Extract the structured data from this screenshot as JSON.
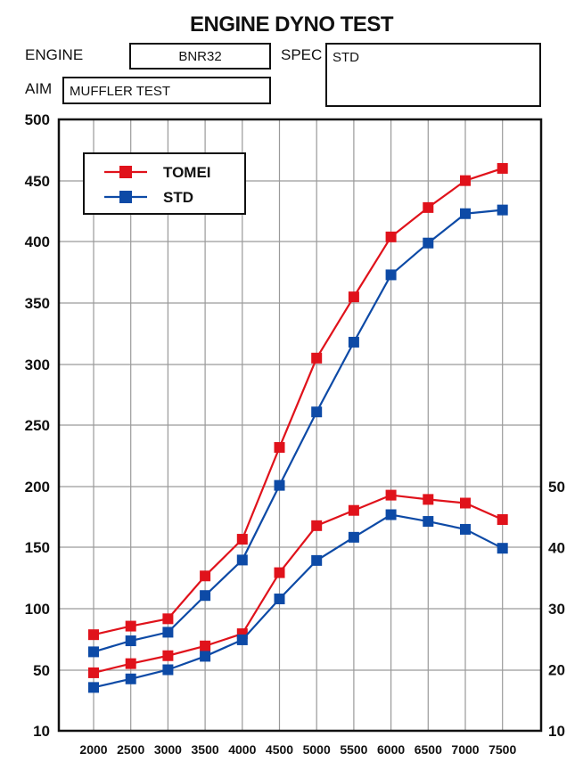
{
  "header": {
    "title": "ENGINE DYNO TEST",
    "engine_label": "ENGINE",
    "engine_value": "BNR32",
    "spec_label": "SPEC",
    "spec_value": "STD",
    "aim_label": "AIM",
    "aim_value": "MUFFLER TEST"
  },
  "chart_data": {
    "type": "line",
    "title": "ENGINE DYNO TEST",
    "xlabel": "",
    "ylabel": "",
    "x": [
      2000,
      2500,
      3000,
      3500,
      4000,
      4500,
      5000,
      5500,
      6000,
      6500,
      7000,
      7500
    ],
    "ylim": [
      0,
      500
    ],
    "left_ticks": [
      "10",
      "50",
      "100",
      "150",
      "200",
      "250",
      "300",
      "350",
      "400",
      "450",
      "500"
    ],
    "right_axis": {
      "ylim": [
        10,
        60
      ],
      "ticks": [
        "10",
        "20",
        "30",
        "40",
        "50"
      ],
      "tick_values": [
        10,
        20,
        30,
        40,
        50
      ]
    },
    "grid": true,
    "legend_position": "top-left",
    "series": [
      {
        "name": "TOMEI",
        "axis": "left",
        "color": "#e0121b",
        "values": [
          79,
          86,
          92,
          127,
          157,
          232,
          305,
          355,
          404,
          428,
          450,
          460
        ]
      },
      {
        "name": "STD",
        "axis": "left",
        "color": "#0d4aa6",
        "values": [
          65,
          74,
          81,
          111,
          140,
          201,
          261,
          318,
          373,
          399,
          423,
          426
        ]
      },
      {
        "name": "TOMEI",
        "axis": "right",
        "color": "#e0121b",
        "in_legend": false,
        "values": [
          19.5,
          21.0,
          22.3,
          23.9,
          25.9,
          35.9,
          43.6,
          46.1,
          48.6,
          47.9,
          47.3,
          44.6
        ]
      },
      {
        "name": "STD",
        "axis": "right",
        "color": "#0d4aa6",
        "in_legend": false,
        "values": [
          17.1,
          18.5,
          20.0,
          22.2,
          24.9,
          31.6,
          37.9,
          41.7,
          45.4,
          44.3,
          43.0,
          39.9
        ]
      }
    ]
  }
}
